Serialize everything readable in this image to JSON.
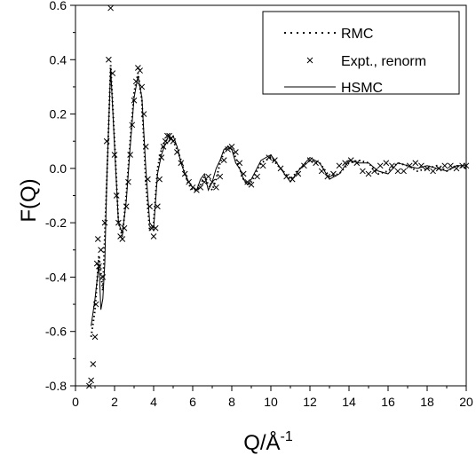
{
  "chart_data": {
    "type": "line",
    "title": "",
    "xlabel": "Q/Å",
    "xlabel_superscript": "-1",
    "ylabel": "F(Q)",
    "xlim": [
      0,
      20
    ],
    "ylim": [
      -0.8,
      0.6
    ],
    "x_ticks": [
      0,
      2,
      4,
      6,
      8,
      10,
      12,
      14,
      16,
      18,
      20
    ],
    "y_ticks": [
      -0.8,
      -0.6,
      -0.4,
      -0.2,
      0.0,
      0.2,
      0.4,
      0.6
    ],
    "x_tick_labels": [
      "0",
      "2",
      "4",
      "6",
      "8",
      "10",
      "12",
      "14",
      "16",
      "18",
      "20"
    ],
    "y_tick_labels": [
      "-0.8",
      "-0.6",
      "-0.4",
      "-0.2",
      "0.0",
      "0.2",
      "0.4",
      "0.6"
    ],
    "grid": false,
    "legend_position": "top-right",
    "series": [
      {
        "name": "RMC",
        "style": "dotted",
        "x": [
          0.8,
          1.0,
          1.2,
          1.4,
          1.6,
          1.8,
          2.0,
          2.2,
          2.4,
          2.6,
          2.8,
          3.0,
          3.2,
          3.4,
          3.6,
          3.8,
          4.0,
          4.2,
          4.4,
          4.6,
          4.8,
          5.0,
          5.2,
          5.4,
          5.6,
          5.8,
          6.0,
          6.2,
          6.4,
          6.6,
          6.8,
          7.0,
          7.2,
          7.4,
          7.6,
          7.8,
          8.0,
          8.2,
          8.4,
          8.6,
          8.8,
          9.0,
          9.5,
          10.0,
          10.5,
          11.0,
          11.5,
          12.0,
          12.5,
          13.0,
          13.5,
          14.0,
          14.5,
          15.0,
          15.5,
          16.0,
          16.5,
          17.0,
          17.5,
          18.0,
          18.5,
          19.0,
          19.5,
          20.0
        ],
        "y": [
          -0.62,
          -0.52,
          -0.32,
          -0.45,
          -0.05,
          0.38,
          0.1,
          -0.2,
          -0.25,
          -0.1,
          0.1,
          0.28,
          0.35,
          0.25,
          -0.05,
          -0.23,
          -0.2,
          0.0,
          0.07,
          0.1,
          0.11,
          0.1,
          0.07,
          0.03,
          -0.02,
          -0.06,
          -0.08,
          -0.08,
          -0.06,
          -0.03,
          -0.06,
          -0.08,
          -0.04,
          0.02,
          0.06,
          0.08,
          0.07,
          0.04,
          0.0,
          -0.04,
          -0.06,
          -0.05,
          0.02,
          0.04,
          0.0,
          -0.04,
          0.0,
          0.03,
          0.02,
          -0.03,
          -0.02,
          0.02,
          0.03,
          0.02,
          -0.02,
          -0.01,
          0.02,
          0.01,
          -0.01,
          0.0,
          0.01,
          -0.01,
          0.01,
          0.0
        ]
      },
      {
        "name": "Expt., renorm",
        "style": "x-markers",
        "x": [
          0.7,
          0.8,
          0.9,
          1.0,
          1.05,
          1.1,
          1.15,
          1.2,
          1.3,
          1.4,
          1.5,
          1.6,
          1.7,
          1.8,
          1.9,
          2.0,
          2.1,
          2.2,
          2.3,
          2.4,
          2.5,
          2.6,
          2.7,
          2.8,
          2.9,
          3.0,
          3.1,
          3.2,
          3.3,
          3.4,
          3.5,
          3.6,
          3.7,
          3.8,
          3.9,
          4.0,
          4.1,
          4.2,
          4.3,
          4.4,
          4.5,
          4.6,
          4.7,
          4.8,
          4.9,
          5.0,
          5.2,
          5.4,
          5.6,
          5.8,
          6.0,
          6.2,
          6.4,
          6.6,
          6.8,
          7.0,
          7.2,
          7.4,
          7.6,
          7.8,
          8.0,
          8.2,
          8.4,
          8.6,
          8.8,
          9.0,
          9.3,
          9.6,
          9.9,
          10.2,
          10.5,
          10.8,
          11.1,
          11.4,
          11.7,
          12.0,
          12.3,
          12.6,
          12.9,
          13.2,
          13.5,
          13.8,
          14.1,
          14.4,
          14.7,
          15.0,
          15.3,
          15.6,
          15.9,
          16.2,
          16.5,
          16.8,
          17.1,
          17.4,
          17.7,
          18.0,
          18.3,
          18.6,
          18.9,
          19.2,
          19.5,
          19.8,
          20.0
        ],
        "y": [
          -0.8,
          -0.78,
          -0.72,
          -0.62,
          -0.5,
          -0.35,
          -0.26,
          -0.36,
          -0.3,
          -0.4,
          -0.2,
          0.1,
          0.4,
          0.59,
          0.35,
          0.05,
          -0.1,
          -0.2,
          -0.25,
          -0.26,
          -0.22,
          -0.14,
          -0.05,
          0.05,
          0.16,
          0.25,
          0.32,
          0.37,
          0.36,
          0.3,
          0.2,
          0.08,
          -0.04,
          -0.14,
          -0.22,
          -0.25,
          -0.22,
          -0.14,
          -0.04,
          0.04,
          0.08,
          0.1,
          0.12,
          0.12,
          0.11,
          0.1,
          0.06,
          0.02,
          -0.02,
          -0.05,
          -0.07,
          -0.08,
          -0.07,
          -0.05,
          -0.03,
          -0.05,
          -0.07,
          -0.03,
          0.03,
          0.07,
          0.08,
          0.06,
          0.02,
          -0.02,
          -0.05,
          -0.06,
          -0.03,
          0.01,
          0.04,
          0.03,
          0.0,
          -0.03,
          -0.04,
          -0.02,
          0.01,
          0.03,
          0.02,
          -0.01,
          -0.03,
          -0.02,
          0.01,
          0.02,
          0.03,
          0.02,
          -0.01,
          -0.02,
          -0.01,
          0.01,
          0.02,
          0.01,
          -0.01,
          -0.01,
          0.01,
          0.02,
          0.01,
          0.0,
          -0.01,
          0.0,
          0.01,
          0.01,
          0.0,
          0.01,
          0.01
        ]
      },
      {
        "name": "HSMC",
        "style": "solid",
        "x": [
          0.8,
          1.0,
          1.2,
          1.3,
          1.4,
          1.5,
          1.6,
          1.8,
          2.0,
          2.2,
          2.4,
          2.6,
          2.8,
          3.0,
          3.2,
          3.4,
          3.6,
          3.8,
          4.0,
          4.2,
          4.4,
          4.6,
          4.8,
          5.0,
          5.2,
          5.4,
          5.6,
          5.8,
          6.0,
          6.2,
          6.4,
          6.6,
          6.8,
          7.0,
          7.2,
          7.4,
          7.6,
          7.8,
          8.0,
          8.2,
          8.4,
          8.6,
          8.8,
          9.0,
          9.5,
          10.0,
          10.5,
          11.0,
          11.5,
          12.0,
          12.5,
          13.0,
          13.5,
          14.0,
          14.5,
          15.0,
          15.5,
          16.0,
          16.5,
          17.0,
          17.5,
          18.0,
          18.5,
          19.0,
          19.5,
          20.0
        ],
        "y": [
          -0.58,
          -0.48,
          -0.35,
          -0.52,
          -0.48,
          -0.35,
          -0.05,
          0.37,
          0.08,
          -0.2,
          -0.24,
          -0.12,
          0.08,
          0.26,
          0.34,
          0.26,
          0.0,
          -0.2,
          -0.22,
          -0.02,
          0.05,
          0.09,
          0.1,
          0.12,
          0.08,
          0.02,
          -0.02,
          -0.05,
          -0.07,
          -0.08,
          -0.04,
          -0.02,
          -0.08,
          -0.05,
          0.0,
          0.03,
          0.07,
          0.08,
          0.07,
          0.02,
          0.0,
          -0.04,
          -0.06,
          -0.04,
          0.03,
          0.05,
          0.0,
          -0.05,
          0.0,
          0.04,
          0.02,
          -0.04,
          -0.02,
          0.03,
          0.02,
          0.02,
          -0.01,
          -0.02,
          0.02,
          0.01,
          0.0,
          0.01,
          0.0,
          -0.01,
          0.01,
          0.01
        ]
      }
    ]
  }
}
